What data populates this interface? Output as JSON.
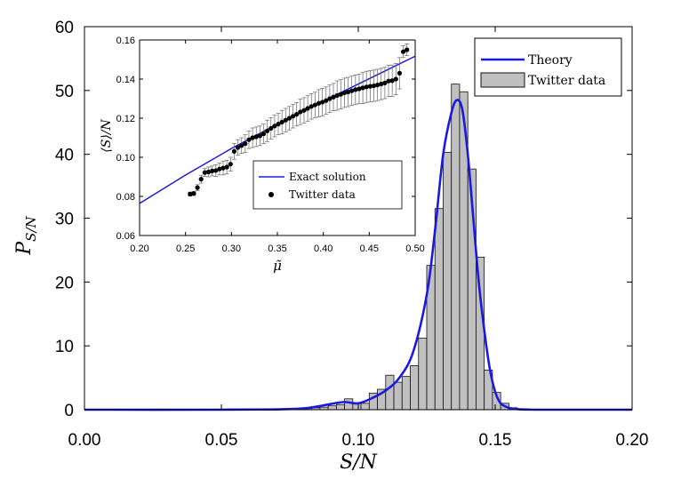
{
  "chart_data": [
    {
      "type": "bar",
      "subtype": "histogram-with-curve",
      "xlabel": "S/N",
      "ylabel": "P_{S/N}",
      "xlim": [
        0.0,
        0.2
      ],
      "ylim": [
        0,
        60
      ],
      "xticks": [
        "0.00",
        "0.05",
        "0.10",
        "0.15",
        "0.20"
      ],
      "yticks": [
        "0",
        "10",
        "20",
        "30",
        "40",
        "50",
        "60"
      ],
      "legend": {
        "placement": "top-right",
        "entries": [
          "Theory",
          "Twitter data"
        ]
      },
      "colors": {
        "curve": "#1a1adf",
        "bars": "#c0c0c0",
        "bar_edge": "#111111"
      },
      "series": [
        {
          "name": "Twitter data",
          "kind": "histogram",
          "bin_width": 0.003,
          "bin_left": [
            0.08,
            0.083,
            0.086,
            0.089,
            0.092,
            0.095,
            0.098,
            0.101,
            0.104,
            0.107,
            0.11,
            0.113,
            0.116,
            0.119,
            0.122,
            0.125,
            0.128,
            0.131,
            0.134,
            0.137,
            0.14,
            0.143,
            0.146,
            0.149,
            0.152,
            0.155
          ],
          "values": [
            0.2,
            0.3,
            0.4,
            0.6,
            0.8,
            1.7,
            1.1,
            1.0,
            2.6,
            3.2,
            5.4,
            4.3,
            5.2,
            6.9,
            11.2,
            22.6,
            31.5,
            40.3,
            51.0,
            49.8,
            37.7,
            23.9,
            6.2,
            2.7,
            1.0,
            0.3
          ]
        },
        {
          "name": "Theory",
          "kind": "line",
          "x": [
            0.0,
            0.05,
            0.07,
            0.08,
            0.085,
            0.09,
            0.095,
            0.1,
            0.105,
            0.11,
            0.115,
            0.12,
            0.125,
            0.128,
            0.131,
            0.134,
            0.136,
            0.138,
            0.14,
            0.142,
            0.144,
            0.146,
            0.148,
            0.15,
            0.152,
            0.155,
            0.158,
            0.162,
            0.17,
            0.2
          ],
          "values": [
            0.0,
            0.0,
            0.05,
            0.2,
            0.5,
            0.9,
            1.2,
            1.0,
            1.8,
            3.0,
            5.0,
            9.0,
            18.0,
            28.0,
            40.0,
            46.5,
            48.5,
            47.0,
            40.0,
            30.0,
            20.0,
            12.5,
            6.5,
            2.8,
            1.0,
            0.3,
            0.1,
            0.02,
            0.0,
            0.0
          ]
        }
      ]
    },
    {
      "type": "scatter",
      "subtype": "inset-with-fit-line",
      "xlabel": "μ̃",
      "ylabel": "⟨S⟩/N",
      "xlim": [
        0.2,
        0.5
      ],
      "ylim": [
        0.06,
        0.16
      ],
      "xticks": [
        "0.20",
        "0.25",
        "0.30",
        "0.35",
        "0.40",
        "0.45",
        "0.50"
      ],
      "yticks": [
        "0.06",
        "0.08",
        "0.10",
        "0.12",
        "0.14",
        "0.16"
      ],
      "legend": {
        "placement": "bottom-right",
        "entries": [
          "Exact solution",
          "Twitter data"
        ]
      },
      "colors": {
        "line": "#1a1adf",
        "points": "#000000",
        "error_bars": "#666666"
      },
      "series": [
        {
          "name": "Exact solution",
          "kind": "line",
          "x": [
            0.2,
            0.25,
            0.3,
            0.35,
            0.4,
            0.45,
            0.5
          ],
          "values": [
            0.0764,
            0.0909,
            0.1045,
            0.117,
            0.1287,
            0.1402,
            0.1517
          ]
        },
        {
          "name": "Twitter data",
          "kind": "scatter-with-errorbars",
          "x": [
            0.255,
            0.259,
            0.263,
            0.267,
            0.271,
            0.275,
            0.279,
            0.283,
            0.287,
            0.291,
            0.295,
            0.299,
            0.303,
            0.307,
            0.311,
            0.315,
            0.319,
            0.323,
            0.327,
            0.331,
            0.335,
            0.339,
            0.343,
            0.347,
            0.351,
            0.355,
            0.359,
            0.363,
            0.367,
            0.371,
            0.375,
            0.379,
            0.383,
            0.387,
            0.391,
            0.395,
            0.399,
            0.403,
            0.407,
            0.411,
            0.415,
            0.419,
            0.423,
            0.427,
            0.431,
            0.435,
            0.439,
            0.443,
            0.447,
            0.451,
            0.455,
            0.459,
            0.463,
            0.467,
            0.471,
            0.475,
            0.479,
            0.483,
            0.487,
            0.491
          ],
          "values": [
            0.0812,
            0.0815,
            0.0845,
            0.0888,
            0.0922,
            0.0925,
            0.093,
            0.0932,
            0.094,
            0.0945,
            0.095,
            0.0965,
            0.103,
            0.105,
            0.106,
            0.107,
            0.109,
            0.11,
            0.1105,
            0.111,
            0.112,
            0.1135,
            0.1148,
            0.116,
            0.117,
            0.118,
            0.119,
            0.12,
            0.121,
            0.122,
            0.1232,
            0.124,
            0.125,
            0.126,
            0.1268,
            0.1276,
            0.1282,
            0.129,
            0.13,
            0.1308,
            0.1316,
            0.1322,
            0.133,
            0.1334,
            0.134,
            0.1346,
            0.135,
            0.1355,
            0.136,
            0.1363,
            0.1366,
            0.137,
            0.1375,
            0.138,
            0.139,
            0.1392,
            0.14,
            0.143,
            0.154,
            0.155
          ],
          "error": [
            0.001,
            0.001,
            0.0015,
            0.002,
            0.002,
            0.0025,
            0.0025,
            0.003,
            0.003,
            0.0035,
            0.0035,
            0.0035,
            0.004,
            0.004,
            0.004,
            0.0045,
            0.0045,
            0.005,
            0.005,
            0.005,
            0.005,
            0.0055,
            0.0055,
            0.0055,
            0.0055,
            0.006,
            0.006,
            0.006,
            0.006,
            0.006,
            0.0065,
            0.0065,
            0.0065,
            0.0065,
            0.0065,
            0.007,
            0.007,
            0.007,
            0.007,
            0.007,
            0.0075,
            0.0075,
            0.0075,
            0.0075,
            0.0075,
            0.0075,
            0.0075,
            0.008,
            0.008,
            0.008,
            0.008,
            0.008,
            0.008,
            0.008,
            0.008,
            0.008,
            0.008,
            0.008,
            0.003,
            0.003
          ]
        }
      ]
    }
  ]
}
